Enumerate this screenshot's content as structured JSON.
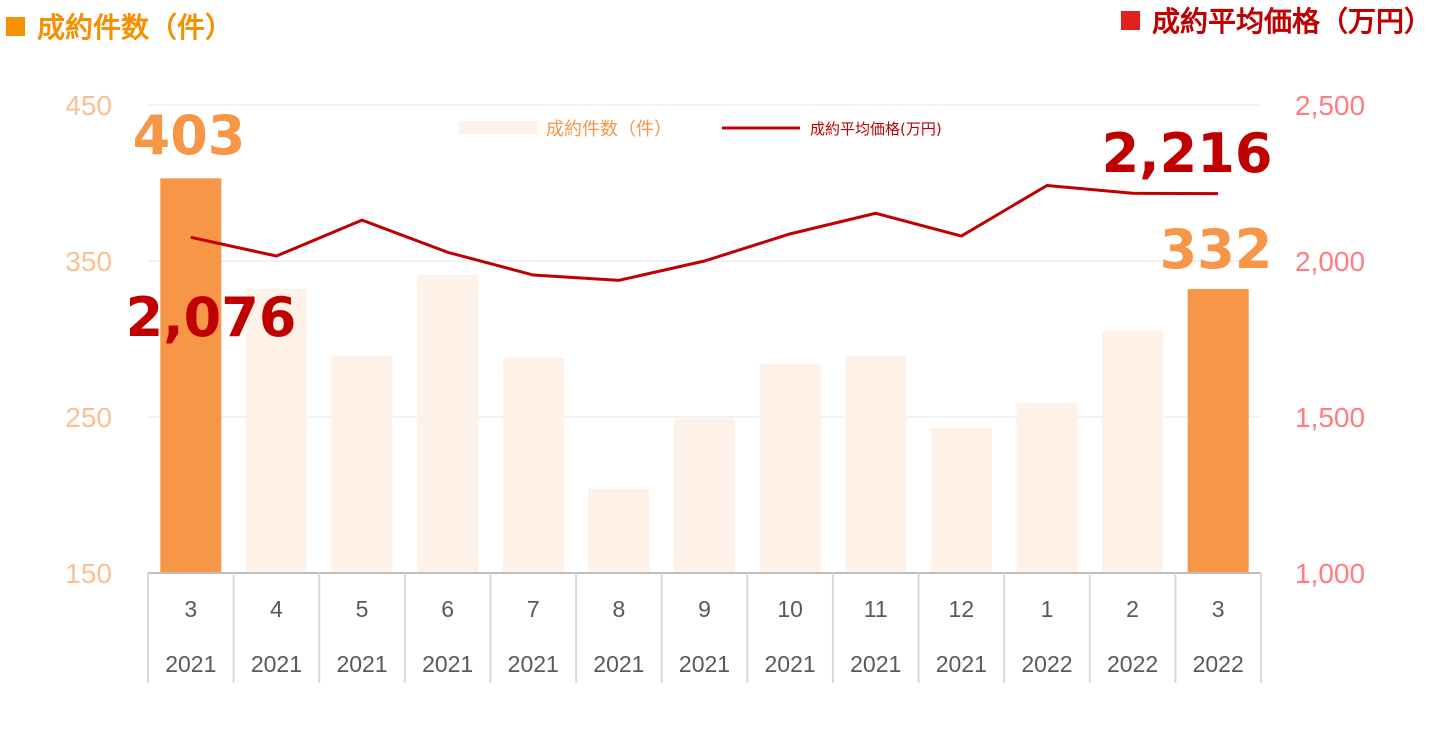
{
  "header": {
    "left_title": "成約件数（件）",
    "right_title": "成約平均価格（万円）"
  },
  "colors": {
    "bar_faint": "#fdf1e8",
    "bar_highlight": "#f79646",
    "line": "#c00000",
    "left_axis_text": "#f9c192",
    "right_axis_text": "#ff7c80",
    "left_title": "#f59100",
    "right_square": "#e0211e",
    "right_title": "#c00000",
    "grid": "#e6e6e6",
    "axis_text": "#595959",
    "label_bar": "#f79646",
    "label_line": "#c00000"
  },
  "chart_data": {
    "type": "bar+line",
    "categories": [
      {
        "month": "3",
        "year": "2021"
      },
      {
        "month": "4",
        "year": "2021"
      },
      {
        "month": "5",
        "year": "2021"
      },
      {
        "month": "6",
        "year": "2021"
      },
      {
        "month": "7",
        "year": "2021"
      },
      {
        "month": "8",
        "year": "2021"
      },
      {
        "month": "9",
        "year": "2021"
      },
      {
        "month": "10",
        "year": "2021"
      },
      {
        "month": "11",
        "year": "2021"
      },
      {
        "month": "12",
        "year": "2021"
      },
      {
        "month": "1",
        "year": "2022"
      },
      {
        "month": "2",
        "year": "2022"
      },
      {
        "month": "3",
        "year": "2022"
      }
    ],
    "series": [
      {
        "name": "成約件数（件）",
        "type": "bar",
        "axis": "left",
        "values": [
          403,
          332,
          289,
          341,
          288,
          204,
          249,
          284,
          289,
          243,
          259,
          305,
          332
        ],
        "highlight": [
          0,
          12
        ]
      },
      {
        "name": "成約平均価格(万円)",
        "type": "line",
        "axis": "right",
        "values": [
          2076,
          2016,
          2131,
          2028,
          1955,
          1938,
          2000,
          2087,
          2153,
          2080,
          2242,
          2217,
          2216
        ]
      }
    ],
    "left_axis": {
      "min": 150,
      "max": 450,
      "ticks": [
        "150",
        "250",
        "350",
        "450"
      ]
    },
    "right_axis": {
      "min": 1000,
      "max": 2500,
      "ticks": [
        "1,000",
        "1,500",
        "2,000",
        "2,500"
      ]
    },
    "data_labels": [
      {
        "series": 0,
        "index": 0,
        "text": "403"
      },
      {
        "series": 0,
        "index": 12,
        "text": "332"
      },
      {
        "series": 1,
        "index": 0,
        "text": "2,076"
      },
      {
        "series": 1,
        "index": 12,
        "text": "2,216"
      }
    ],
    "legend_position": "top-center",
    "grid": true
  }
}
